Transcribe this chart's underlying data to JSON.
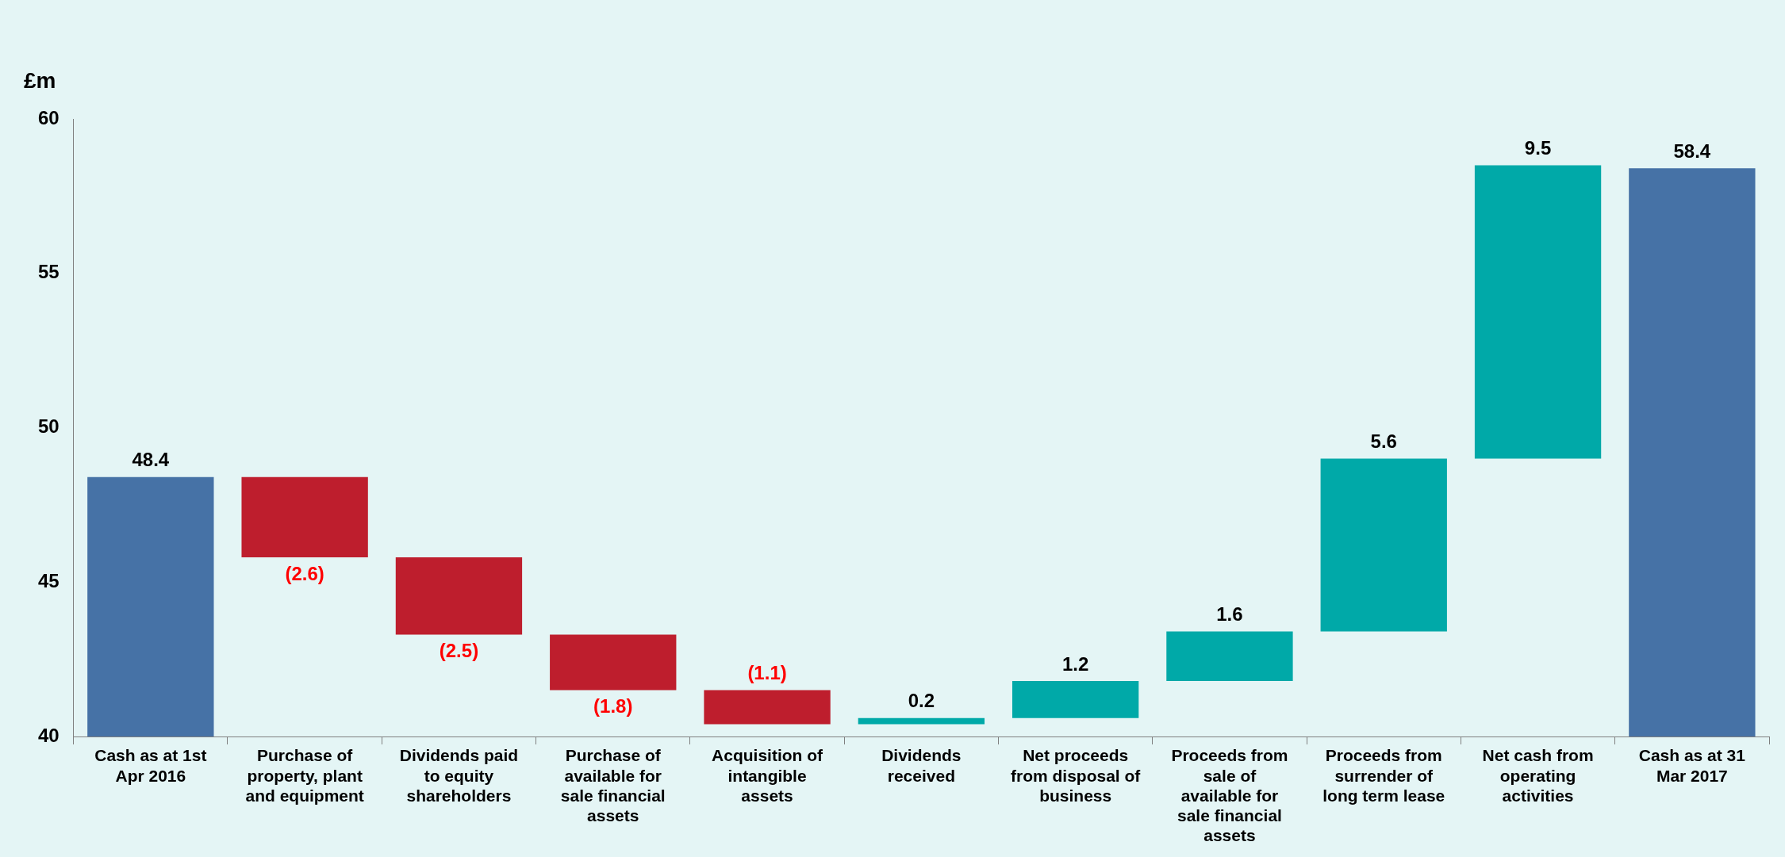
{
  "chart_data": {
    "type": "bar",
    "ylabel": "£m",
    "categories": [
      "Cash as at 1st Apr 2016",
      "Purchase of property, plant and equipment",
      "Dividends paid to equity shareholders",
      "Purchase of available for sale financial assets",
      "Acquisition of intangible assets",
      "Dividends received",
      "Net proceeds from disposal of business",
      "Proceeds from sale of available for sale financial assets",
      "Proceeds from surrender of long term lease",
      "Net cash from operating activities",
      "Cash as at 31 Mar 2017"
    ],
    "values": [
      48.4,
      -2.6,
      -2.5,
      -1.8,
      -1.1,
      0.2,
      1.2,
      1.6,
      5.6,
      9.5,
      58.4
    ],
    "base": [
      null,
      48.4,
      45.8,
      43.3,
      41.5,
      40.4,
      40.6,
      41.8,
      43.4,
      49.0,
      null
    ],
    "colors": [
      "#4672a6",
      "#be1e2d",
      "#be1e2d",
      "#be1e2d",
      "#be1e2d",
      "#00a9a8",
      "#00a9a8",
      "#00a9a8",
      "#00a9a8",
      "#00a9a8",
      "#4672a6"
    ],
    "value_labels": [
      "48.4",
      "(2.6)",
      "(2.5)",
      "(1.8)",
      "(1.1)",
      "0.2",
      "1.2",
      "1.6",
      "5.6",
      "9.5",
      "58.4"
    ],
    "ylim": [
      40,
      60
    ],
    "yticks": [
      40,
      45,
      50,
      55,
      60
    ],
    "grid": false,
    "legend": false
  }
}
